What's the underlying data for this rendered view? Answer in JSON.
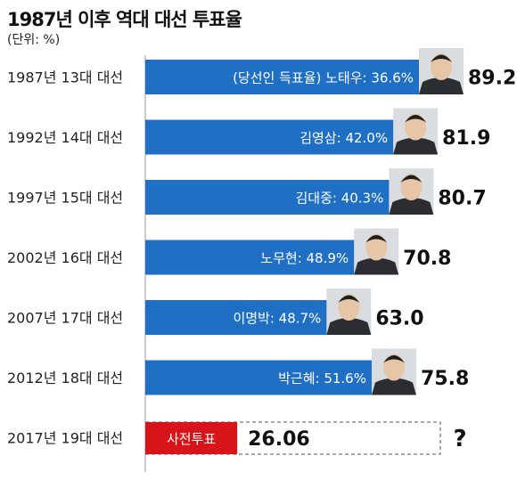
{
  "title": "1987년 이후 역대 대선 투표율",
  "unit": "(단위: %)",
  "colors": {
    "bar": "#1f6fc5",
    "early_bar": "#d7141a",
    "dashed_outline": "#7a7a7a",
    "photo_skin": "#e6c6a7",
    "photo_suit": "#2b2d33"
  },
  "chart_data": {
    "type": "bar",
    "orientation": "horizontal",
    "categories": [
      "1987년 13대 대선",
      "1992년 14대 대선",
      "1997년 15대 대선",
      "2002년 16대 대선",
      "2007년 17대 대선",
      "2012년 18대 대선",
      "2017년 19대 대선"
    ],
    "values": [
      89.2,
      81.9,
      80.7,
      70.8,
      63.0,
      75.8,
      26.06
    ],
    "value_labels": [
      "89.2",
      "81.9",
      "80.7",
      "70.8",
      "63.0",
      "75.8",
      "26.06"
    ],
    "bar_annotations": [
      "(당선인 득표율) 노태우: 36.6%",
      "김영삼: 42.0%",
      "김대중: 40.3%",
      "노무현: 48.9%",
      "이명박: 48.7%",
      "박근혜: 51.6%",
      "사전투표"
    ],
    "pending_marker": "?",
    "xlim": [
      0,
      100
    ]
  }
}
